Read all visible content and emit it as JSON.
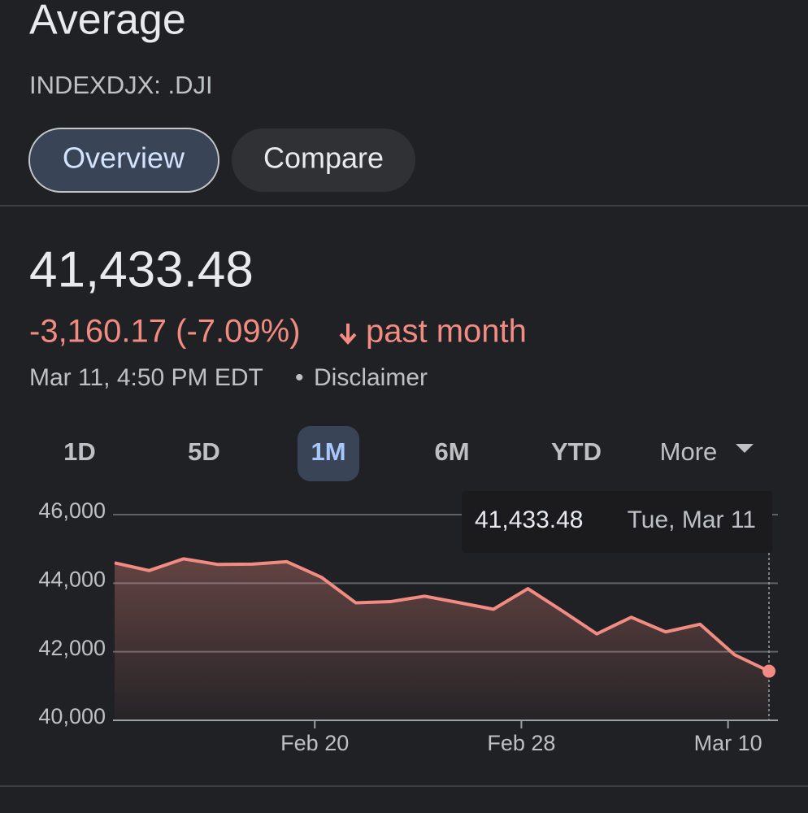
{
  "header": {
    "title": "Average",
    "ticker": "INDEXDJX: .DJI",
    "tabs": [
      "Overview",
      "Compare"
    ],
    "price": "41,433.48",
    "change": "-3,160.17 (-7.09%)",
    "period": "past month",
    "timestamp": "Mar 11, 4:50 PM EDT",
    "separator": "•",
    "disclaimer": "Disclaimer"
  },
  "ranges": [
    "1D",
    "5D",
    "1M",
    "6M",
    "YTD",
    "More"
  ],
  "chart_data": {
    "type": "line",
    "categories": [
      null,
      null,
      null,
      null,
      null,
      null,
      "Feb 20",
      null,
      null,
      null,
      null,
      null,
      "Feb 28",
      null,
      null,
      null,
      null,
      null,
      "Mar 10",
      null
    ],
    "values": [
      44593,
      44368,
      44711,
      44546,
      44556,
      44627,
      44176,
      43428,
      43461,
      43621,
      43433,
      43240,
      43841,
      43191,
      42521,
      43006,
      42579,
      42802,
      41912,
      41433.48
    ],
    "value_labels": [
      null,
      null,
      null,
      null,
      null,
      null,
      null,
      null,
      null,
      null,
      null,
      null,
      null,
      null,
      null,
      null,
      null,
      null,
      null,
      "41,433.48"
    ],
    "tooltip_date": "Tue, Mar 11",
    "color": "#f28b82",
    "area": true,
    "grid": true,
    "ylim": [
      40000,
      46000
    ],
    "yticks": [
      {
        "value": 40000,
        "label": "40,000"
      },
      {
        "value": 42000,
        "label": "42,000"
      },
      {
        "value": 44000,
        "label": "44,000"
      },
      {
        "value": 46000,
        "label": "46,000"
      }
    ]
  }
}
